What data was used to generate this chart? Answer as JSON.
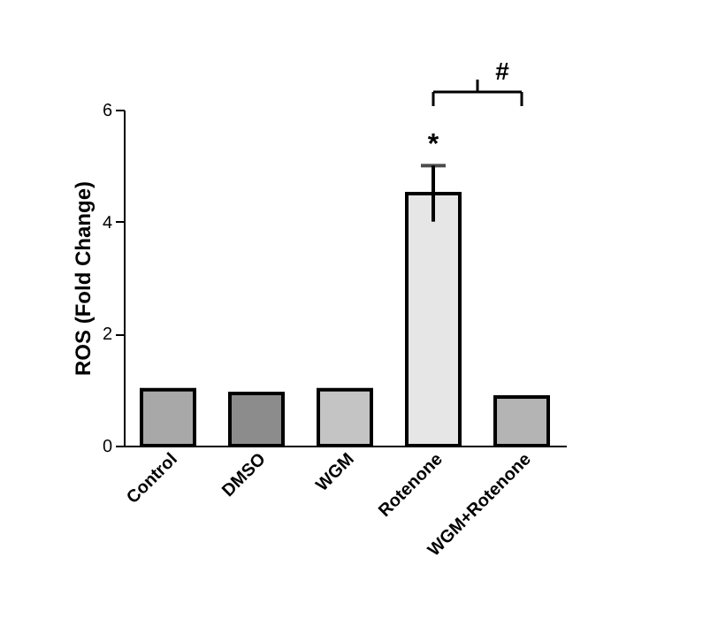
{
  "chart_data": {
    "type": "bar",
    "ylabel": "ROS (Fold Change)",
    "categories": [
      "Control",
      "DMSO",
      "WGM",
      "Rotenone",
      "WGM+Rotenone"
    ],
    "values": [
      1.0,
      0.93,
      1.0,
      4.5,
      0.87
    ],
    "errors": [
      null,
      null,
      null,
      0.5,
      null
    ],
    "colors": [
      "#a8a8a8",
      "#8c8c8c",
      "#c4c4c4",
      "#e6e6e6",
      "#b4b4b4"
    ],
    "ylim": [
      0,
      6
    ],
    "yticks": [
      0,
      2,
      4,
      6
    ],
    "grid": false,
    "annotations": [
      {
        "text": "*",
        "x": "Rotenone",
        "y": 5.0
      },
      "#"
    ]
  }
}
